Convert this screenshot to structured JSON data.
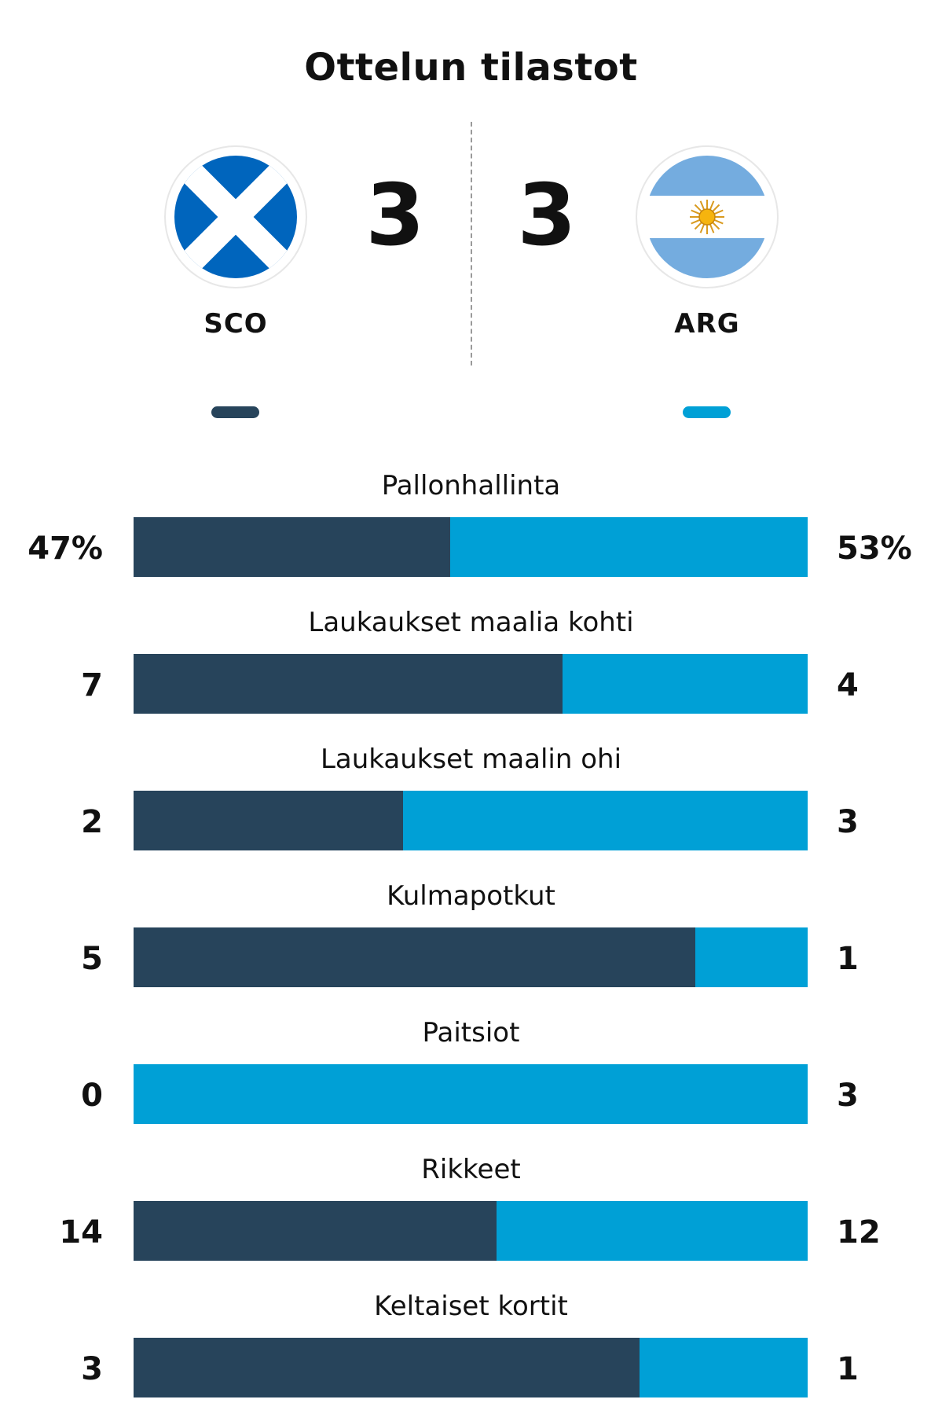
{
  "header": {
    "title": "Ottelun tilastot"
  },
  "colors": {
    "home": "#27445b",
    "away": "#00a0d6"
  },
  "teams": {
    "home": {
      "abbr": "SCO",
      "score": "3",
      "flag_icon": "scotland-flag-icon"
    },
    "away": {
      "abbr": "ARG",
      "score": "3",
      "flag_icon": "argentina-flag-icon"
    }
  },
  "stats": [
    {
      "label": "Pallonhallinta",
      "home": "47%",
      "away": "53%",
      "home_value": 47,
      "away_value": 53
    },
    {
      "label": "Laukaukset maalia kohti",
      "home": "7",
      "away": "4",
      "home_value": 7,
      "away_value": 4
    },
    {
      "label": "Laukaukset maalin ohi",
      "home": "2",
      "away": "3",
      "home_value": 2,
      "away_value": 3
    },
    {
      "label": "Kulmapotkut",
      "home": "5",
      "away": "1",
      "home_value": 5,
      "away_value": 1
    },
    {
      "label": "Paitsiot",
      "home": "0",
      "away": "3",
      "home_value": 0,
      "away_value": 3
    },
    {
      "label": "Rikkeet",
      "home": "14",
      "away": "12",
      "home_value": 14,
      "away_value": 12
    },
    {
      "label": "Keltaiset kortit",
      "home": "3",
      "away": "1",
      "home_value": 3,
      "away_value": 1
    }
  ]
}
